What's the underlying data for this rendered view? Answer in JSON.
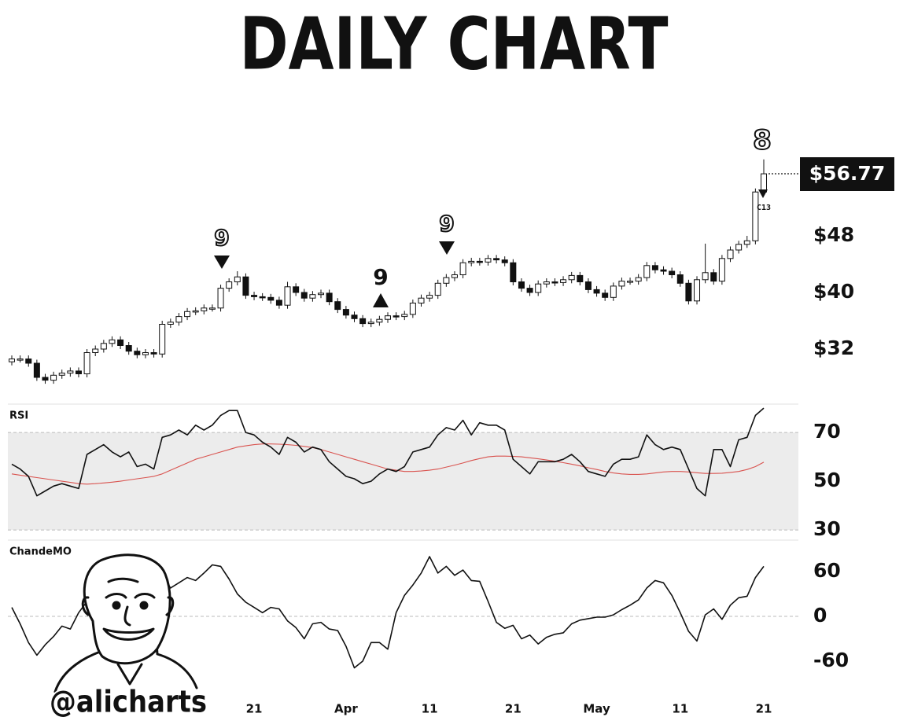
{
  "chart_data": [
    {
      "type": "candlestick",
      "title": "DAILY CHART",
      "categories": [
        null,
        null,
        null,
        null,
        null,
        null,
        null,
        null,
        null,
        null,
        null,
        null,
        null,
        null,
        null,
        null,
        null,
        null,
        null,
        null,
        null,
        null,
        null,
        null,
        null,
        null,
        null,
        null,
        null,
        "21",
        null,
        null,
        null,
        null,
        null,
        null,
        null,
        null,
        null,
        null,
        "Apr",
        null,
        null,
        null,
        null,
        null,
        null,
        null,
        null,
        null,
        "11",
        null,
        null,
        null,
        null,
        null,
        null,
        null,
        null,
        null,
        "21",
        null,
        null,
        null,
        null,
        null,
        null,
        null,
        null,
        null,
        "May",
        null,
        null,
        null,
        null,
        null,
        null,
        null,
        null,
        null,
        "11",
        null,
        null,
        null,
        null,
        null,
        null,
        null,
        null,
        null,
        "21"
      ],
      "open": [
        30.2,
        30.6,
        30.6,
        30.0,
        28.0,
        27.6,
        28.3,
        28.6,
        28.9,
        28.5,
        31.5,
        32.0,
        32.8,
        33.3,
        32.5,
        31.7,
        31.2,
        31.5,
        31.3,
        35.5,
        35.8,
        36.6,
        37.3,
        37.4,
        37.8,
        37.8,
        40.6,
        41.5,
        42.2,
        39.6,
        39.4,
        39.3,
        38.9,
        38.2,
        40.8,
        40.0,
        39.2,
        39.7,
        39.9,
        38.7,
        37.6,
        36.8,
        36.3,
        35.6,
        35.8,
        36.2,
        36.7,
        36.6,
        36.9,
        38.5,
        39.2,
        39.6,
        41.3,
        42.1,
        42.5,
        44.2,
        44.4,
        44.3,
        44.8,
        44.6,
        44.2,
        41.5,
        40.6,
        40.0,
        41.2,
        41.5,
        41.4,
        41.8,
        42.4,
        41.5,
        40.4,
        39.9,
        39.3,
        40.9,
        41.6,
        41.6,
        42.1,
        43.8,
        43.2,
        43.0,
        42.5,
        41.3,
        38.8,
        41.8,
        42.8,
        41.6,
        44.8,
        46.0,
        46.8,
        47.3,
        54.2
      ],
      "high": [
        31.1,
        31.1,
        31.1,
        30.5,
        28.5,
        28.8,
        29.1,
        29.4,
        29.4,
        32.0,
        32.5,
        33.3,
        33.8,
        33.8,
        33.0,
        32.2,
        32.0,
        32.0,
        36.0,
        36.3,
        37.1,
        37.8,
        37.9,
        38.3,
        38.3,
        41.1,
        42.0,
        43.0,
        42.7,
        40.1,
        39.9,
        39.8,
        39.4,
        41.5,
        41.3,
        40.5,
        40.2,
        40.4,
        40.4,
        39.2,
        38.1,
        37.3,
        36.8,
        36.3,
        36.7,
        37.2,
        37.2,
        37.4,
        39.0,
        39.7,
        40.1,
        41.8,
        42.6,
        43.0,
        44.7,
        44.9,
        44.9,
        45.3,
        45.3,
        45.1,
        44.7,
        42.0,
        41.1,
        41.7,
        42.0,
        42.0,
        42.3,
        42.9,
        42.9,
        42.0,
        40.9,
        40.4,
        41.4,
        42.1,
        42.1,
        42.6,
        44.3,
        44.3,
        43.7,
        43.5,
        43.0,
        41.8,
        42.3,
        46.9,
        43.3,
        45.3,
        46.5,
        47.3,
        48.0,
        54.7,
        58.8
      ],
      "low": [
        29.7,
        30.1,
        29.5,
        27.5,
        27.1,
        27.1,
        27.8,
        28.1,
        28.0,
        28.0,
        31.0,
        31.5,
        32.3,
        32.0,
        31.2,
        30.7,
        30.7,
        30.8,
        30.8,
        35.0,
        35.3,
        36.1,
        36.8,
        36.9,
        37.3,
        37.3,
        40.1,
        41.0,
        39.1,
        38.9,
        38.8,
        38.4,
        37.7,
        37.7,
        39.5,
        38.7,
        38.7,
        39.2,
        38.2,
        37.1,
        36.3,
        35.8,
        35.1,
        35.1,
        35.3,
        35.7,
        36.1,
        36.1,
        36.4,
        38.0,
        38.7,
        39.1,
        40.8,
        41.6,
        42.0,
        43.7,
        43.8,
        43.8,
        44.1,
        43.7,
        41.0,
        40.1,
        39.5,
        39.5,
        40.7,
        40.9,
        40.9,
        41.3,
        41.0,
        39.9,
        39.4,
        38.8,
        38.8,
        40.4,
        41.1,
        41.1,
        41.6,
        42.7,
        42.5,
        42.0,
        40.8,
        38.3,
        38.3,
        41.3,
        41.1,
        41.1,
        44.3,
        45.5,
        46.3,
        46.8,
        54.0
      ],
      "close": [
        30.6,
        30.6,
        30.0,
        28.0,
        27.6,
        28.3,
        28.6,
        28.9,
        28.5,
        31.5,
        32.0,
        32.8,
        33.3,
        32.5,
        31.7,
        31.2,
        31.5,
        31.3,
        35.5,
        35.8,
        36.6,
        37.3,
        37.4,
        37.8,
        37.8,
        40.6,
        41.5,
        42.2,
        39.6,
        39.4,
        39.3,
        38.9,
        38.2,
        40.8,
        40.0,
        39.2,
        39.7,
        39.9,
        38.7,
        37.6,
        36.8,
        36.3,
        35.6,
        35.8,
        36.2,
        36.7,
        36.6,
        36.9,
        38.5,
        39.2,
        39.6,
        41.3,
        42.1,
        42.5,
        44.2,
        44.4,
        44.3,
        44.8,
        44.6,
        44.2,
        41.5,
        40.6,
        40.0,
        41.2,
        41.5,
        41.4,
        41.8,
        42.4,
        41.5,
        40.4,
        39.9,
        39.3,
        40.9,
        41.6,
        41.6,
        42.1,
        43.8,
        43.2,
        43.0,
        42.5,
        41.3,
        38.8,
        41.8,
        42.8,
        41.6,
        44.8,
        46.0,
        46.8,
        47.3,
        54.2,
        56.77
      ],
      "last_price_label": "$56.77",
      "annotations": [
        "9",
        "9",
        "9",
        "8",
        "C13"
      ],
      "watermark": "@alicharts",
      "ylim": [
        25,
        65
      ],
      "yticks": [
        {
          "value": 32,
          "label": "$32"
        },
        {
          "value": 40,
          "label": "$40"
        },
        {
          "value": 48,
          "label": "$48"
        }
      ]
    },
    {
      "type": "line",
      "title": "RSI",
      "series": [
        {
          "color": "#111111",
          "values": [
            57,
            55,
            52,
            44,
            46,
            48,
            49,
            48,
            47,
            61,
            63,
            65,
            62,
            60,
            62,
            56,
            57,
            55,
            68,
            69,
            71,
            69,
            73,
            71,
            73,
            77,
            79,
            79,
            70,
            69,
            66,
            64,
            61,
            68,
            66,
            62,
            64,
            63,
            58,
            55,
            52,
            51,
            49,
            50,
            53,
            55,
            54,
            56,
            62,
            63,
            64,
            69,
            72,
            71,
            75,
            69,
            74,
            73,
            73,
            71,
            59,
            56,
            53,
            58,
            58,
            58,
            59,
            61,
            58,
            54,
            53,
            52,
            57,
            59,
            59,
            60,
            69,
            65,
            63,
            64,
            63,
            55,
            47,
            44,
            63,
            63,
            56,
            67,
            68,
            77,
            80
          ]
        },
        {
          "color": "#d9534f",
          "values": [
            53,
            52.5,
            52,
            51.5,
            51,
            50.5,
            50,
            49.5,
            49,
            48.8,
            49,
            49.3,
            49.6,
            50,
            50.5,
            51,
            51.5,
            52,
            53,
            54.5,
            56,
            57.5,
            59,
            60,
            61,
            62,
            63,
            64,
            64.5,
            65,
            65.3,
            65.3,
            65.2,
            65,
            64.7,
            64.3,
            63.8,
            63,
            62,
            61,
            60,
            59,
            58,
            57,
            56,
            55,
            54.5,
            54,
            54,
            54.2,
            54.5,
            55,
            55.8,
            56.6,
            57.5,
            58.5,
            59.3,
            60,
            60.3,
            60.3,
            60.2,
            60,
            59.6,
            59.2,
            58.7,
            58.2,
            57.6,
            57,
            56.3,
            55.5,
            54.8,
            54,
            53.4,
            53,
            52.8,
            52.8,
            53,
            53.4,
            53.8,
            54,
            54,
            53.8,
            53.5,
            53.2,
            53.2,
            53.3,
            53.6,
            54,
            54.8,
            56,
            57.8
          ]
        }
      ],
      "band": [
        30,
        70
      ],
      "ylim": [
        26,
        81
      ],
      "yticks": [
        30,
        50,
        70
      ]
    },
    {
      "type": "line",
      "title": "ChandeMO",
      "series": [
        {
          "color": "#111111",
          "values": [
            12,
            -10,
            -35,
            -52,
            -38,
            -27,
            -13,
            -17,
            5,
            20,
            24,
            12,
            6,
            22,
            0,
            10,
            18,
            27,
            55,
            38,
            45,
            52,
            48,
            58,
            69,
            67,
            50,
            30,
            19,
            12,
            5,
            12,
            10,
            -6,
            -15,
            -30,
            -10,
            -8,
            -17,
            -19,
            -40,
            -69,
            -60,
            -35,
            -35,
            -44,
            5,
            28,
            42,
            58,
            80,
            58,
            67,
            55,
            62,
            48,
            47,
            20,
            -8,
            -16,
            -12,
            -30,
            -25,
            -37,
            -28,
            -24,
            -22,
            -10,
            -5,
            -3,
            -1,
            -1,
            2,
            9,
            15,
            22,
            38,
            48,
            45,
            28,
            5,
            -20,
            -33,
            2,
            10,
            -4,
            15,
            25,
            27,
            52,
            67
          ]
        }
      ],
      "baseline": 0,
      "ylim": [
        -100,
        100
      ],
      "yticks": [
        -60,
        0,
        60
      ]
    }
  ]
}
